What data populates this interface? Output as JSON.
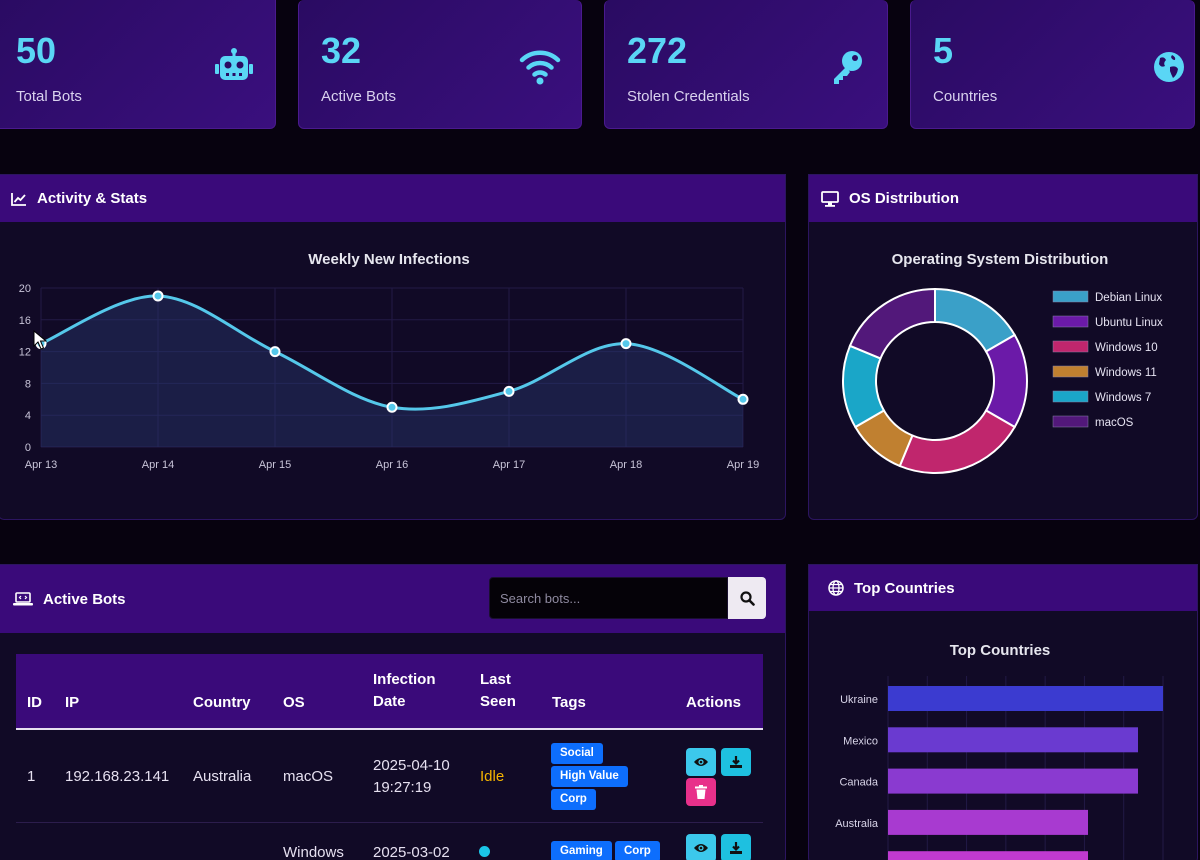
{
  "stats": [
    {
      "value": "50",
      "label": "Total Bots",
      "icon": "robot-icon"
    },
    {
      "value": "32",
      "label": "Active Bots",
      "icon": "wifi-icon"
    },
    {
      "value": "272",
      "label": "Stolen Credentials",
      "icon": "key-icon"
    },
    {
      "value": "5",
      "label": "Countries",
      "icon": "globe-icon"
    }
  ],
  "activity": {
    "header": "Activity & Stats",
    "chart_title": "Weekly New Infections"
  },
  "os": {
    "header": "OS Distribution",
    "chart_title": "Operating System Distribution"
  },
  "bots": {
    "header": "Active Bots",
    "search_placeholder": "Search bots...",
    "columns": [
      "ID",
      "IP",
      "Country",
      "OS",
      "Infection",
      "Date",
      "Last",
      "Seen",
      "Tags",
      "Actions"
    ],
    "rows": [
      {
        "id": "1",
        "ip": "192.168.23.141",
        "country": "Australia",
        "os": "macOS",
        "date": "2025-04-10",
        "time": "19:27:19",
        "last_seen": "Idle",
        "tags": [
          "Social",
          "High Value",
          "Corp"
        ]
      },
      {
        "id": "",
        "ip": "",
        "country": "",
        "os": "Windows",
        "date": "2025-03-02",
        "time": "",
        "last_seen": "",
        "tags": [
          "Gaming",
          "Corp"
        ]
      }
    ]
  },
  "countries": {
    "header": "Top Countries",
    "chart_title": "Top Countries"
  },
  "colors": {
    "accent": "#5ad6f5",
    "header": "#3a0a7a",
    "idle": "#f5b400",
    "tag": "#0d6efd"
  },
  "chart_data": [
    {
      "type": "line",
      "title": "Weekly New Infections",
      "categories": [
        "Apr 13",
        "Apr 14",
        "Apr 15",
        "Apr 16",
        "Apr 17",
        "Apr 18",
        "Apr 19"
      ],
      "values": [
        13,
        19,
        12,
        5,
        7,
        13,
        6
      ],
      "ylim": [
        0,
        20
      ],
      "yticks": [
        "0",
        "4",
        "8",
        "12",
        "16",
        "20"
      ],
      "color": "#55c8ea"
    },
    {
      "type": "pie",
      "title": "Operating System Distribution",
      "labels": [
        "Debian Linux",
        "Ubuntu Linux",
        "Windows 10",
        "Windows 11",
        "Windows 7",
        "macOS"
      ],
      "values": [
        8,
        8,
        11,
        5,
        7,
        9
      ],
      "colors": [
        "#3aa0c8",
        "#6b1aa8",
        "#c0266d",
        "#c08030",
        "#1aa6c8",
        "#52187a"
      ],
      "legend": "right"
    },
    {
      "type": "bar",
      "title": "Top Countries",
      "categories": [
        "Ukraine",
        "Mexico",
        "Canada",
        "Australia",
        ""
      ],
      "values": [
        11,
        10,
        10,
        8,
        8
      ],
      "xlim": [
        0,
        11
      ],
      "colors": [
        "#3b3bd0",
        "#6a3ad0",
        "#8a3ad0",
        "#a83ad0",
        "#c03ad0"
      ]
    }
  ]
}
